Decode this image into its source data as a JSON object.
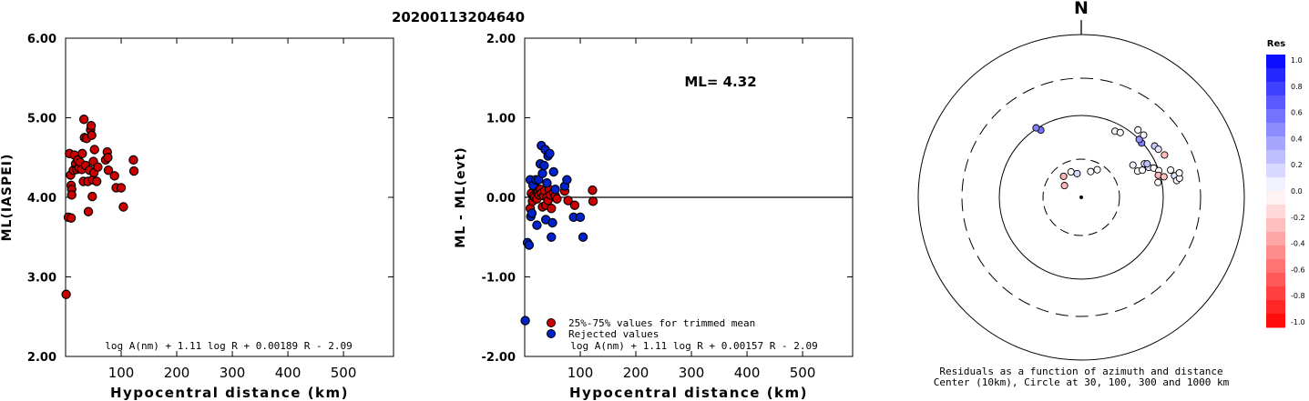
{
  "title": "20200113204640",
  "north_label": "N",
  "colors": {
    "red_points": "#cc0000",
    "blue_points": "#0022cc",
    "axis": "#000000"
  },
  "chart_data": [
    {
      "type": "scatter",
      "xlabel": "Hypocentral distance (km)",
      "ylabel": "ML(IASPEI)",
      "xlim": [
        0,
        590
      ],
      "ylim": [
        2.0,
        6.0
      ],
      "xticks": [
        "100",
        "200",
        "300",
        "400",
        "500"
      ],
      "xtick_values": [
        100,
        200,
        300,
        400,
        500
      ],
      "yticks": [
        "2.00",
        "3.00",
        "4.00",
        "5.00",
        "6.00"
      ],
      "ytick_values": [
        2.0,
        3.0,
        4.0,
        5.0,
        6.0
      ],
      "formula": "log A(nm) + 1.11 log R + 0.00189 R - 2.09",
      "series": [
        {
          "color": "#cc0000",
          "points": [
            [
              1,
              2.78
            ],
            [
              5,
              3.75
            ],
            [
              10,
              3.74
            ],
            [
              7,
              4.55
            ],
            [
              9,
              4.28
            ],
            [
              10,
              4.15
            ],
            [
              11,
              4.1
            ],
            [
              11,
              4.03
            ],
            [
              14,
              4.34
            ],
            [
              16,
              4.53
            ],
            [
              18,
              4.42
            ],
            [
              20,
              4.35
            ],
            [
              22,
              4.47
            ],
            [
              24,
              4.37
            ],
            [
              26,
              4.44
            ],
            [
              29,
              4.35
            ],
            [
              30,
              4.55
            ],
            [
              32,
              4.2
            ],
            [
              33,
              4.98
            ],
            [
              34,
              4.75
            ],
            [
              36,
              4.4
            ],
            [
              38,
              4.74
            ],
            [
              40,
              4.2
            ],
            [
              41,
              3.82
            ],
            [
              43,
              4.34
            ],
            [
              45,
              4.85
            ],
            [
              46,
              4.9
            ],
            [
              47,
              4.78
            ],
            [
              48,
              4.01
            ],
            [
              49,
              4.22
            ],
            [
              50,
              4.45
            ],
            [
              51,
              4.31
            ],
            [
              52,
              4.6
            ],
            [
              56,
              4.2
            ],
            [
              58,
              4.38
            ],
            [
              72,
              4.47
            ],
            [
              75,
              4.57
            ],
            [
              76,
              4.5
            ],
            [
              77,
              4.34
            ],
            [
              88,
              4.27
            ],
            [
              91,
              4.12
            ],
            [
              100,
              4.12
            ],
            [
              104,
              3.88
            ],
            [
              122,
              4.47
            ],
            [
              123,
              4.33
            ]
          ]
        }
      ]
    },
    {
      "type": "scatter",
      "xlabel": "Hypocentral distance (km)",
      "ylabel": "ML - ML(evt)",
      "xlim": [
        0,
        590
      ],
      "ylim": [
        -2.0,
        2.0
      ],
      "xticks": [
        "100",
        "200",
        "300",
        "400",
        "500"
      ],
      "xtick_values": [
        100,
        200,
        300,
        400,
        500
      ],
      "yticks": [
        "-2.00",
        "-1.00",
        "0.00",
        "1.00",
        "2.00"
      ],
      "ytick_values": [
        -2.0,
        -1.0,
        0.0,
        1.0,
        2.0
      ],
      "annotation": "ML= 4.32",
      "formula": "log A(nm) + 1.11 log R + 0.00157 R - 2.09",
      "legend": [
        "25%-75% values for trimmed mean",
        "Rejected values"
      ],
      "series": [
        {
          "name": "25%-75% values for trimmed mean",
          "color": "#cc0000",
          "points": [
            [
              10,
              -0.14
            ],
            [
              12,
              0.05
            ],
            [
              14,
              -0.05
            ],
            [
              16,
              0.02
            ],
            [
              18,
              0.0
            ],
            [
              20,
              0.12
            ],
            [
              22,
              -0.02
            ],
            [
              24,
              0.06
            ],
            [
              26,
              0.03
            ],
            [
              28,
              0.1
            ],
            [
              30,
              0.05
            ],
            [
              32,
              -0.12
            ],
            [
              34,
              0.02
            ],
            [
              36,
              0.08
            ],
            [
              38,
              -0.1
            ],
            [
              40,
              0.0
            ],
            [
              42,
              -0.04
            ],
            [
              44,
              0.1
            ],
            [
              46,
              0.03
            ],
            [
              48,
              -0.14
            ],
            [
              52,
              0.06
            ],
            [
              55,
              0.02
            ],
            [
              58,
              -0.02
            ],
            [
              72,
              0.08
            ],
            [
              78,
              -0.04
            ],
            [
              90,
              -0.1
            ],
            [
              122,
              0.09
            ],
            [
              123,
              -0.05
            ]
          ]
        },
        {
          "name": "Rejected values",
          "color": "#0022cc",
          "points": [
            [
              1,
              -1.55
            ],
            [
              5,
              -0.57
            ],
            [
              8,
              -0.6
            ],
            [
              10,
              0.22
            ],
            [
              11,
              -0.24
            ],
            [
              13,
              -0.2
            ],
            [
              15,
              0.15
            ],
            [
              20,
              0.22
            ],
            [
              22,
              -0.35
            ],
            [
              25,
              0.22
            ],
            [
              28,
              0.42
            ],
            [
              30,
              0.65
            ],
            [
              32,
              0.3
            ],
            [
              35,
              0.4
            ],
            [
              37,
              0.6
            ],
            [
              38,
              -0.28
            ],
            [
              40,
              0.18
            ],
            [
              42,
              0.52
            ],
            [
              45,
              0.55
            ],
            [
              48,
              -0.5
            ],
            [
              50,
              -0.32
            ],
            [
              52,
              0.32
            ],
            [
              55,
              0.1
            ],
            [
              72,
              0.14
            ],
            [
              76,
              0.22
            ],
            [
              88,
              -0.25
            ],
            [
              100,
              -0.25
            ],
            [
              105,
              -0.5
            ]
          ]
        }
      ]
    },
    {
      "type": "polar_scatter",
      "north_label": "N",
      "caption_line1": "Residuals as a function of azimuth and distance",
      "caption_line2": "Center (10km), Circle at 30, 100, 300 and 1000 km",
      "colorbar_title": "Res",
      "colorbar_ticks": [
        "1.0",
        "0.8",
        "0.6",
        "0.4",
        "0.2",
        "0.0",
        "-0.2",
        "-0.4",
        "-0.6",
        "-0.8",
        "-1.0"
      ],
      "rings_km": [
        30,
        100,
        300,
        1000
      ],
      "stations": [
        {
          "dist_km": 81,
          "az_deg": 27,
          "res": 0.05
        },
        {
          "dist_km": 84,
          "az_deg": 31,
          "res": 0.02
        },
        {
          "dist_km": 91,
          "az_deg": 329,
          "res": 0.55
        },
        {
          "dist_km": 103,
          "az_deg": 327,
          "res": 0.5
        },
        {
          "dist_km": 98,
          "az_deg": 48,
          "res": 0.5
        },
        {
          "dist_km": 100,
          "az_deg": 45,
          "res": 0.42
        },
        {
          "dist_km": 120,
          "az_deg": 40,
          "res": 0.0
        },
        {
          "dist_km": 120,
          "az_deg": 45,
          "res": 0.05
        },
        {
          "dist_km": 125,
          "az_deg": 55,
          "res": 0.22
        },
        {
          "dist_km": 130,
          "az_deg": 58,
          "res": 0.1
        },
        {
          "dist_km": 140,
          "az_deg": 63,
          "res": -0.25
        },
        {
          "dist_km": 56,
          "az_deg": 58,
          "res": 0.05
        },
        {
          "dist_km": 58,
          "az_deg": 65,
          "res": 0.0
        },
        {
          "dist_km": 66,
          "az_deg": 66,
          "res": 0.0
        },
        {
          "dist_km": 75,
          "az_deg": 62,
          "res": 0.15
        },
        {
          "dist_km": 80,
          "az_deg": 66,
          "res": 0.1
        },
        {
          "dist_km": 80,
          "az_deg": 63,
          "res": 0.25
        },
        {
          "dist_km": 90,
          "az_deg": 68,
          "res": 0.0
        },
        {
          "dist_km": 100,
          "az_deg": 71,
          "res": 0.0
        },
        {
          "dist_km": 95,
          "az_deg": 74,
          "res": -0.3
        },
        {
          "dist_km": 110,
          "az_deg": 76,
          "res": -0.25
        },
        {
          "dist_km": 90,
          "az_deg": 79,
          "res": 0.0
        },
        {
          "dist_km": 140,
          "az_deg": 73,
          "res": 0.0
        },
        {
          "dist_km": 155,
          "az_deg": 78,
          "res": 0.0
        },
        {
          "dist_km": 150,
          "az_deg": 77,
          "res": 0.1
        },
        {
          "dist_km": 155,
          "az_deg": 80,
          "res": 0.0
        },
        {
          "dist_km": 170,
          "az_deg": 79,
          "res": 0.0
        },
        {
          "dist_km": 175,
          "az_deg": 76,
          "res": 0.0
        },
        {
          "dist_km": 22,
          "az_deg": 320,
          "res": -0.3
        },
        {
          "dist_km": 22,
          "az_deg": 338,
          "res": 0.0
        },
        {
          "dist_km": 20,
          "az_deg": 350,
          "res": 0.15
        },
        {
          "dist_km": 22,
          "az_deg": 20,
          "res": 0.0
        },
        {
          "dist_km": 25,
          "az_deg": 30,
          "res": 0.0
        },
        {
          "dist_km": 18,
          "az_deg": 305,
          "res": -0.3
        }
      ]
    }
  ]
}
